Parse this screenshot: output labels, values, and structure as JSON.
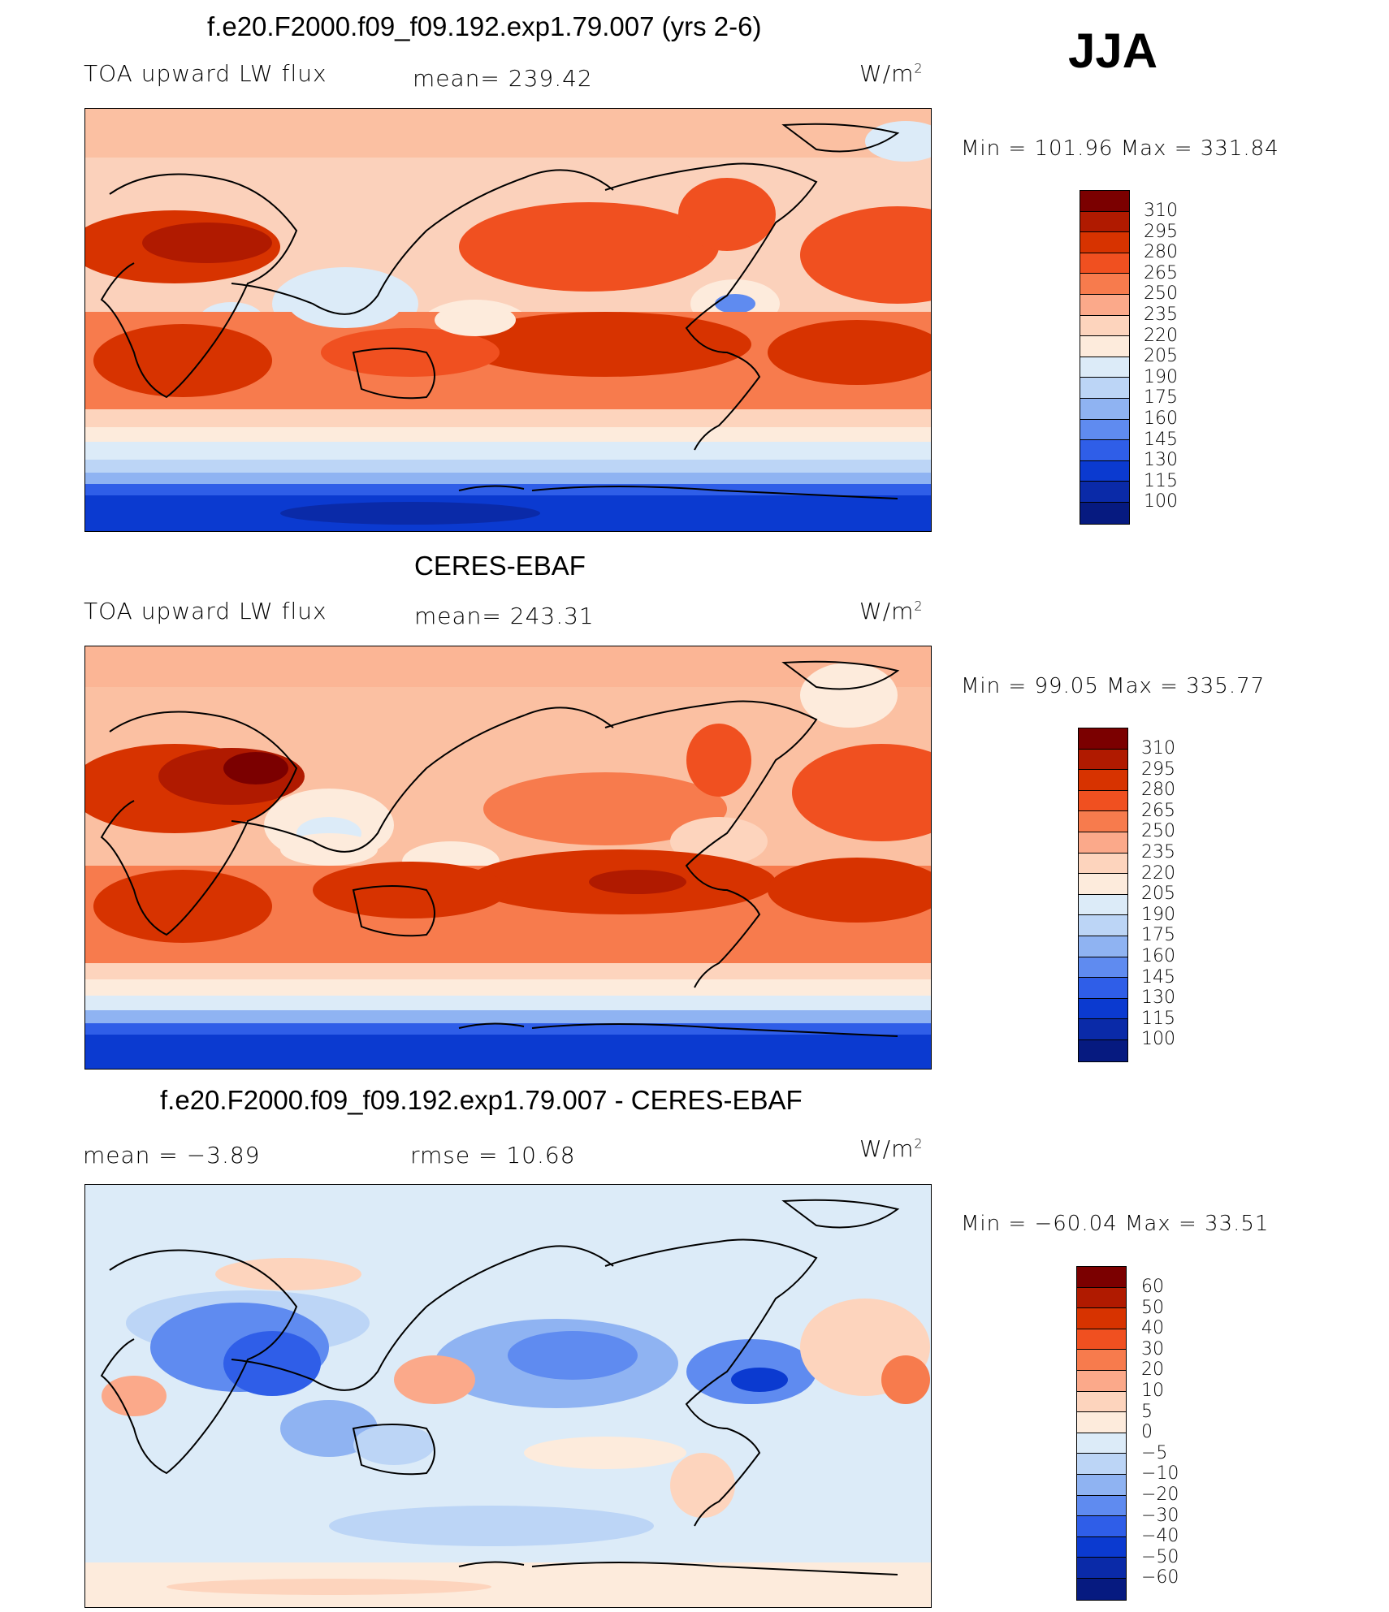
{
  "season": "JJA",
  "panels": [
    {
      "title": "f.e20.F2000.f09_f09.192.exp1.79.007 (yrs 2-6)",
      "left_label": "TOA upward LW flux",
      "center_label": "mean=  239.42",
      "units_base": "W/m",
      "units_exp": "2",
      "minmax": "Min  =  101.96  Max  =  331.84",
      "colorbar_labels": [
        "310",
        "295",
        "280",
        "265",
        "250",
        "235",
        "220",
        "205",
        "190",
        "175",
        "160",
        "145",
        "130",
        "115",
        "100"
      ]
    },
    {
      "title": "CERES-EBAF",
      "left_label": "TOA upward LW flux",
      "center_label": "mean=  243.31",
      "units_base": "W/m",
      "units_exp": "2",
      "minmax": "Min  =    99.05  Max  =  335.77",
      "colorbar_labels": [
        "310",
        "295",
        "280",
        "265",
        "250",
        "235",
        "220",
        "205",
        "190",
        "175",
        "160",
        "145",
        "130",
        "115",
        "100"
      ]
    },
    {
      "title": "f.e20.F2000.f09_f09.192.exp1.79.007 - CERES-EBAF",
      "left_label": "mean  =     −3.89",
      "center_label": "rmse  =     10.68",
      "units_base": "W/m",
      "units_exp": "2",
      "minmax": "Min  =  −60.04  Max  =    33.51",
      "colorbar_labels": [
        "60",
        "50",
        "40",
        "30",
        "20",
        "10",
        "5",
        "0",
        "−5",
        "−10",
        "−20",
        "−30",
        "−40",
        "−50",
        "−60"
      ]
    }
  ],
  "colors": {
    "flux_scale": [
      "#7b0000",
      "#b01a00",
      "#d73300",
      "#f05020",
      "#f77b4d",
      "#fba98a",
      "#fdd4bd",
      "#fdebdc",
      "#dcebf8",
      "#bcd5f6",
      "#8fb3f2",
      "#5f8bf0",
      "#2f5ee8",
      "#0b3ad0",
      "#0a2aa8",
      "#061a80"
    ],
    "diff_scale": [
      "#7b0000",
      "#b01a00",
      "#d73300",
      "#f05020",
      "#f77b4d",
      "#fba98a",
      "#fdd4bd",
      "#fdebdc",
      "#dcebf8",
      "#bcd5f6",
      "#8fb3f2",
      "#5f8bf0",
      "#2f5ee8",
      "#0b3ad0",
      "#0a2aa8",
      "#061a80"
    ]
  }
}
